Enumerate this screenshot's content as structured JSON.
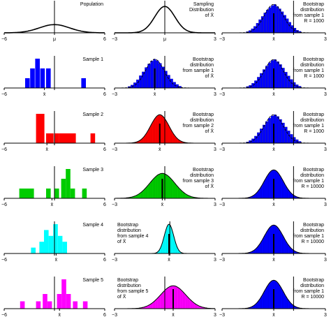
{
  "chart_data": [
    {
      "id": "pop",
      "type": "line",
      "label_lines": [
        "Population"
      ],
      "xlim": [
        -6,
        6
      ],
      "ticks": [
        "−6",
        "μ",
        "6"
      ],
      "fill": null,
      "curve": {
        "mean": 0,
        "sd": 1.8,
        "peak": 0.28
      },
      "vline": 0
    },
    {
      "id": "samp",
      "type": "area",
      "label_lines": [
        "Sampling",
        "Distribution",
        "of X̄"
      ],
      "xlim": [
        -3,
        3
      ],
      "ticks": [
        "−3",
        "μ",
        "3"
      ],
      "fill": null,
      "curve": {
        "mean": 0,
        "sd": 0.6,
        "peak": 0.9
      },
      "vline": 0
    },
    {
      "id": "bs-r1",
      "type": "bar",
      "label_lines": [
        "Bootstrap",
        "distribution",
        "from sample 1",
        "R = 1000"
      ],
      "xlim": [
        -3,
        3
      ],
      "ticks": [
        "−3",
        "x̄",
        "3"
      ],
      "fill": "#0000ff",
      "curve": {
        "mean": 0,
        "sd": 0.55,
        "peak": 0.97
      },
      "bars": [
        0.04,
        0.08,
        0.14,
        0.22,
        0.33,
        0.45,
        0.56,
        0.68,
        0.78,
        0.86,
        0.93,
        0.97,
        0.9,
        0.82,
        0.72,
        0.6,
        0.48,
        0.36,
        0.25,
        0.16,
        0.09,
        0.05
      ],
      "bar_range": [
        -1.6,
        1.6
      ],
      "vline": 1.15,
      "xbar": 0
    },
    {
      "id": "s1",
      "type": "bar",
      "label_lines": [
        "Sample 1"
      ],
      "xlim": [
        -6,
        6
      ],
      "ticks": [
        "−6",
        "x̄",
        "6"
      ],
      "fill": "#0000ff",
      "bars": [
        {
          "x": -3.5,
          "w": 0.55,
          "h": 1
        },
        {
          "x": -2.9,
          "w": 0.55,
          "h": 2
        },
        {
          "x": -2.3,
          "w": 0.55,
          "h": 3
        },
        {
          "x": -1.7,
          "w": 0.55,
          "h": 2
        },
        {
          "x": -1.0,
          "w": 0.55,
          "h": 2
        },
        {
          "x": 3.2,
          "w": 0.55,
          "h": 1
        }
      ],
      "vline": 0,
      "xbar": -1.2
    },
    {
      "id": "bs1",
      "type": "bar",
      "label_lines": [
        "Bootstrap",
        "distribution",
        "from sample 1",
        "of X̄"
      ],
      "xlim": [
        -3,
        3
      ],
      "ticks": [
        "−3",
        "x̄",
        "3"
      ],
      "fill": "#0000ff",
      "curve": {
        "mean": -0.6,
        "sd": 0.55,
        "peak": 0.98
      },
      "bars": [
        0.05,
        0.1,
        0.18,
        0.28,
        0.42,
        0.55,
        0.7,
        0.82,
        0.92,
        0.98,
        0.93,
        0.84,
        0.72,
        0.58,
        0.44,
        0.31,
        0.2,
        0.12,
        0.06
      ],
      "bar_range": [
        -2.2,
        1.0
      ],
      "vline": 0,
      "xbar": -0.6
    },
    {
      "id": "bs-r2",
      "type": "bar",
      "label_lines": [
        "Bootstrap",
        "distribution",
        "from sample 1",
        "R = 1000"
      ],
      "xlim": [
        -3,
        3
      ],
      "ticks": [
        "−3",
        "x̄",
        "3"
      ],
      "fill": "#0000ff",
      "curve": {
        "mean": 0,
        "sd": 0.55,
        "peak": 0.97
      },
      "bars": [
        0.05,
        0.09,
        0.16,
        0.25,
        0.37,
        0.5,
        0.63,
        0.75,
        0.86,
        0.94,
        0.97,
        0.9,
        0.8,
        0.68,
        0.54,
        0.41,
        0.29,
        0.19,
        0.11,
        0.06
      ],
      "bar_range": [
        -1.6,
        1.6
      ],
      "vline": 1.15,
      "xbar": 0
    },
    {
      "id": "s2",
      "type": "bar",
      "label_lines": [
        "Sample 2"
      ],
      "xlim": [
        -6,
        6
      ],
      "ticks": [
        "−6",
        "x̄",
        "6"
      ],
      "fill": "#ff0000",
      "bars": [
        {
          "x": -2.2,
          "w": 1.0,
          "h": 3
        },
        {
          "x": -1.0,
          "w": 0.9,
          "h": 1
        },
        {
          "x": 0.0,
          "w": 0.55,
          "h": 1
        },
        {
          "x": 0.55,
          "w": 1.6,
          "h": 1
        },
        {
          "x": 2.0,
          "w": 0.55,
          "h": 1
        },
        {
          "x": 4.3,
          "w": 0.55,
          "h": 1
        }
      ],
      "vline": 0,
      "xbar": -0.9
    },
    {
      "id": "bs2",
      "type": "area",
      "label_lines": [
        "Bootstrap",
        "distribution",
        "from sample 2",
        "of X̄"
      ],
      "xlim": [
        -3,
        3
      ],
      "ticks": [
        "−3",
        "x̄",
        "3"
      ],
      "fill": "#ff0000",
      "curve": {
        "mean": -0.3,
        "sd": 0.55,
        "peak": 0.97
      },
      "vline": 0,
      "xbar": -0.3
    },
    {
      "id": "bs-r3",
      "type": "bar",
      "label_lines": [
        "Bootstrap",
        "distribution",
        "from sample 1",
        "R = 1000"
      ],
      "xlim": [
        -3,
        3
      ],
      "ticks": [
        "−3",
        "x̄",
        "3"
      ],
      "fill": "#0000ff",
      "curve": {
        "mean": 0,
        "sd": 0.55,
        "peak": 0.97
      },
      "bars": [
        0.04,
        0.09,
        0.15,
        0.24,
        0.36,
        0.49,
        0.62,
        0.74,
        0.85,
        0.93,
        0.97,
        0.91,
        0.81,
        0.69,
        0.55,
        0.42,
        0.3,
        0.2,
        0.12,
        0.06
      ],
      "bar_range": [
        -1.6,
        1.6
      ],
      "vline": 1.15,
      "xbar": 0
    },
    {
      "id": "s3",
      "type": "bar",
      "label_lines": [
        "Sample 3"
      ],
      "xlim": [
        -6,
        6
      ],
      "ticks": [
        "−6",
        "x̄",
        "6"
      ],
      "fill": "#00cc00",
      "bars": [
        {
          "x": -4.2,
          "w": 1.2,
          "h": 1
        },
        {
          "x": -3.0,
          "w": 0.55,
          "h": 1
        },
        {
          "x": -1.0,
          "w": 0.55,
          "h": 1
        },
        {
          "x": 0.0,
          "w": 0.55,
          "h": 1
        },
        {
          "x": 0.8,
          "w": 0.55,
          "h": 2
        },
        {
          "x": 1.35,
          "w": 0.55,
          "h": 3
        },
        {
          "x": 1.9,
          "w": 0.55,
          "h": 1
        },
        {
          "x": 3.3,
          "w": 0.55,
          "h": 1
        }
      ],
      "vline": 0,
      "xbar": -0.3
    },
    {
      "id": "bs3",
      "type": "area",
      "label_lines": [
        "Bootstrap",
        "distribution",
        "from sample 3",
        "of X̄"
      ],
      "xlim": [
        -3,
        3
      ],
      "ticks": [
        "−3",
        "x̄",
        "3"
      ],
      "fill": "#00cc00",
      "curve": {
        "mean": -0.15,
        "sd": 0.75,
        "peak": 0.85
      },
      "vline": 0,
      "xbar": -0.15
    },
    {
      "id": "bs-r4",
      "type": "area",
      "label_lines": [
        "Bootstrap",
        "distribution",
        "from sample 1",
        "R = 10000"
      ],
      "xlim": [
        -3,
        3
      ],
      "ticks": [
        "−3",
        "x̄",
        "3"
      ],
      "fill": "#0000ff",
      "curve": {
        "mean": 0,
        "sd": 0.55,
        "peak": 0.97
      },
      "vline": 1.15,
      "xbar": 0
    },
    {
      "id": "s4",
      "type": "bar",
      "label_lines": [
        "Sample 4"
      ],
      "xlim": [
        -6,
        6
      ],
      "ticks": [
        "−6",
        "x̄",
        "6"
      ],
      "fill": "#00ffff",
      "bars": [
        {
          "x": -2.8,
          "w": 0.55,
          "h": 1
        },
        {
          "x": -1.8,
          "w": 0.55,
          "h": 2
        },
        {
          "x": -1.25,
          "w": 0.55,
          "h": 4
        },
        {
          "x": -0.7,
          "w": 0.55,
          "h": 3
        },
        {
          "x": -0.15,
          "w": 0.55,
          "h": 5
        },
        {
          "x": 0.4,
          "w": 0.55,
          "h": 3
        },
        {
          "x": 0.95,
          "w": 0.55,
          "h": 2
        }
      ],
      "vline": 0,
      "xbar": 0.2
    },
    {
      "id": "bs4",
      "type": "area",
      "label_lines": [
        "Bootstrap",
        "distribution",
        "from sample 4",
        "of X̄"
      ],
      "xlim": [
        -3,
        3
      ],
      "ticks": [
        "−3",
        "x̄",
        "3"
      ],
      "fill": "#00ffff",
      "curve": {
        "mean": 0.25,
        "sd": 0.28,
        "peak": 1.3
      },
      "vline": 0.3,
      "xbar": 0.25
    },
    {
      "id": "bs-r5",
      "type": "area",
      "label_lines": [
        "Bootstrap",
        "distribution",
        "from sample 1",
        "R = 10000"
      ],
      "xlim": [
        -3,
        3
      ],
      "ticks": [
        "−3",
        "x̄",
        "3"
      ],
      "fill": "#0000ff",
      "curve": {
        "mean": 0,
        "sd": 0.55,
        "peak": 0.97
      },
      "vline": 1.15,
      "xbar": 0
    },
    {
      "id": "s5",
      "type": "bar",
      "label_lines": [
        "Sample 5"
      ],
      "xlim": [
        -6,
        6
      ],
      "ticks": [
        "−6",
        "x̄",
        "6"
      ],
      "fill": "#ff00ff",
      "bars": [
        {
          "x": -4.1,
          "w": 0.55,
          "h": 1
        },
        {
          "x": -2.2,
          "w": 0.55,
          "h": 1
        },
        {
          "x": -1.4,
          "w": 0.55,
          "h": 2
        },
        {
          "x": -0.85,
          "w": 0.55,
          "h": 1
        },
        {
          "x": 0.3,
          "w": 0.55,
          "h": 2
        },
        {
          "x": 0.85,
          "w": 0.55,
          "h": 4
        },
        {
          "x": 1.4,
          "w": 0.55,
          "h": 2
        },
        {
          "x": 2.2,
          "w": 0.55,
          "h": 1
        },
        {
          "x": 3.4,
          "w": 0.55,
          "h": 1
        }
      ],
      "vline": 0,
      "xbar": 0.6
    },
    {
      "id": "bs5",
      "type": "area",
      "label_lines": [
        "Bootstrap",
        "distribution",
        "from sample 5",
        "of X̄"
      ],
      "xlim": [
        -3,
        3
      ],
      "ticks": [
        "−3",
        "x̄",
        "3"
      ],
      "fill": "#ff00ff",
      "curve": {
        "mean": 0.5,
        "sd": 0.75,
        "peak": 0.78
      },
      "vline": 0,
      "xbar": 0.5
    },
    {
      "id": "bs-r6",
      "type": "area",
      "label_lines": [
        "Bootstrap",
        "distribution",
        "from sample 1",
        "R = 10000"
      ],
      "xlim": [
        -3,
        3
      ],
      "ticks": [
        "−3",
        "x̄",
        "3"
      ],
      "fill": "#0000ff",
      "curve": {
        "mean": 0,
        "sd": 0.55,
        "peak": 0.97
      },
      "vline": 1.15,
      "xbar": 0
    }
  ]
}
